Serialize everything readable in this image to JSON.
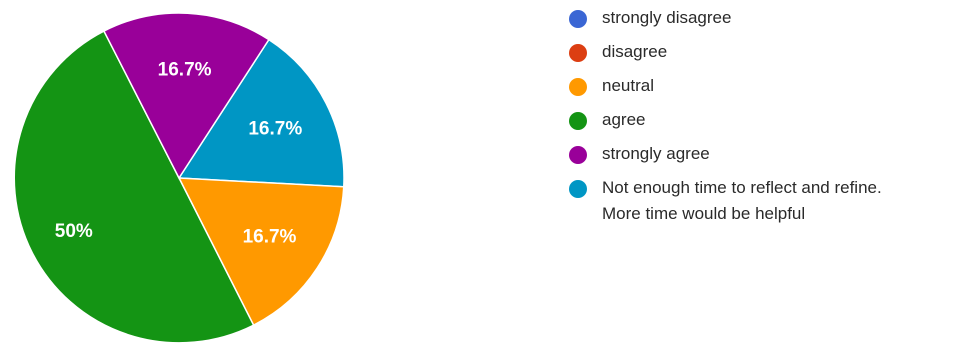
{
  "chart_data": {
    "type": "pie",
    "categories": [
      "strongly disagree",
      "disagree",
      "neutral",
      "agree",
      "strongly agree",
      "Not enough time to reflect and refine. More time would be helpful"
    ],
    "values": [
      0,
      0,
      16.7,
      50,
      16.7,
      16.7
    ],
    "labels": [
      "",
      "",
      "16.7%",
      "50%",
      "16.7%",
      "16.7%"
    ],
    "colors": [
      "#3a66d4",
      "#dc3e12",
      "#ff9900",
      "#149414",
      "#990099",
      "#0096c4"
    ],
    "legend": {
      "placement": "right",
      "entries": [
        {
          "lines": [
            "strongly disagree"
          ]
        },
        {
          "lines": [
            "disagree"
          ]
        },
        {
          "lines": [
            "neutral"
          ]
        },
        {
          "lines": [
            "agree"
          ]
        },
        {
          "lines": [
            "strongly agree"
          ]
        },
        {
          "lines": [
            "Not enough time to reflect and refine.",
            "More time would be helpful"
          ]
        }
      ]
    },
    "title": ""
  }
}
